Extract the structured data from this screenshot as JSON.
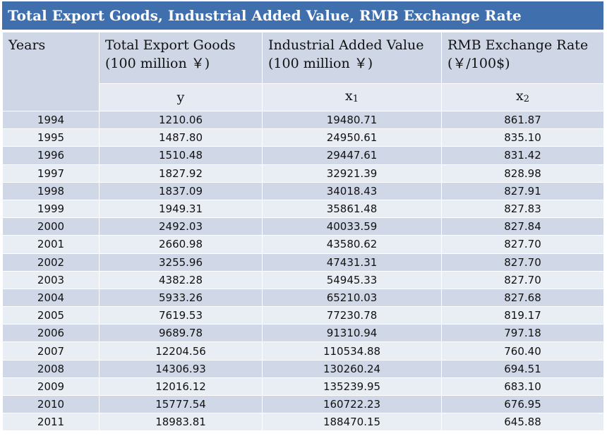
{
  "title": "Total Export Goods, Industrial Added Value, RMB Exchange Rate",
  "header": {
    "years": "Years",
    "col1_line1": "Total Export Goods",
    "col1_line2": "(100 million  ￥)",
    "col2_line1": "Industrial Added Value",
    "col2_line2": "(100 million  ￥)",
    "col3_line1": "RMB Exchange Rate",
    "col3_line2": "(￥/100$)",
    "sym_y": "y",
    "sym_x1_base": "x",
    "sym_x1_sub": "1",
    "sym_x2_base": "x",
    "sym_x2_sub": "2"
  },
  "rows": [
    {
      "year": "1994",
      "y": "1210.06",
      "x1": "19480.71",
      "x2": "861.87"
    },
    {
      "year": "1995",
      "y": "1487.80",
      "x1": "24950.61",
      "x2": "835.10"
    },
    {
      "year": "1996",
      "y": "1510.48",
      "x1": "29447.61",
      "x2": "831.42"
    },
    {
      "year": "1997",
      "y": "1827.92",
      "x1": "32921.39",
      "x2": "828.98"
    },
    {
      "year": "1998",
      "y": "1837.09",
      "x1": "34018.43",
      "x2": "827.91"
    },
    {
      "year": "1999",
      "y": "1949.31",
      "x1": "35861.48",
      "x2": "827.83"
    },
    {
      "year": "2000",
      "y": "2492.03",
      "x1": "40033.59",
      "x2": "827.84"
    },
    {
      "year": "2001",
      "y": "2660.98",
      "x1": "43580.62",
      "x2": "827.70"
    },
    {
      "year": "2002",
      "y": "3255.96",
      "x1": "47431.31",
      "x2": "827.70"
    },
    {
      "year": "2003",
      "y": "4382.28",
      "x1": "54945.33",
      "x2": "827.70"
    },
    {
      "year": "2004",
      "y": "5933.26",
      "x1": "65210.03",
      "x2": "827.68"
    },
    {
      "year": "2005",
      "y": "7619.53",
      "x1": "77230.78",
      "x2": "819.17"
    },
    {
      "year": "2006",
      "y": "9689.78",
      "x1": "91310.94",
      "x2": "797.18"
    },
    {
      "year": "2007",
      "y": "12204.56",
      "x1": "110534.88",
      "x2": "760.40"
    },
    {
      "year": "2008",
      "y": "14306.93",
      "x1": "130260.24",
      "x2": "694.51"
    },
    {
      "year": "2009",
      "y": "12016.12",
      "x1": "135239.95",
      "x2": "683.10"
    },
    {
      "year": "2010",
      "y": "15777.54",
      "x1": "160722.23",
      "x2": "676.95"
    },
    {
      "year": "2011",
      "y": "18983.81",
      "x1": "188470.15",
      "x2": "645.88"
    }
  ]
}
